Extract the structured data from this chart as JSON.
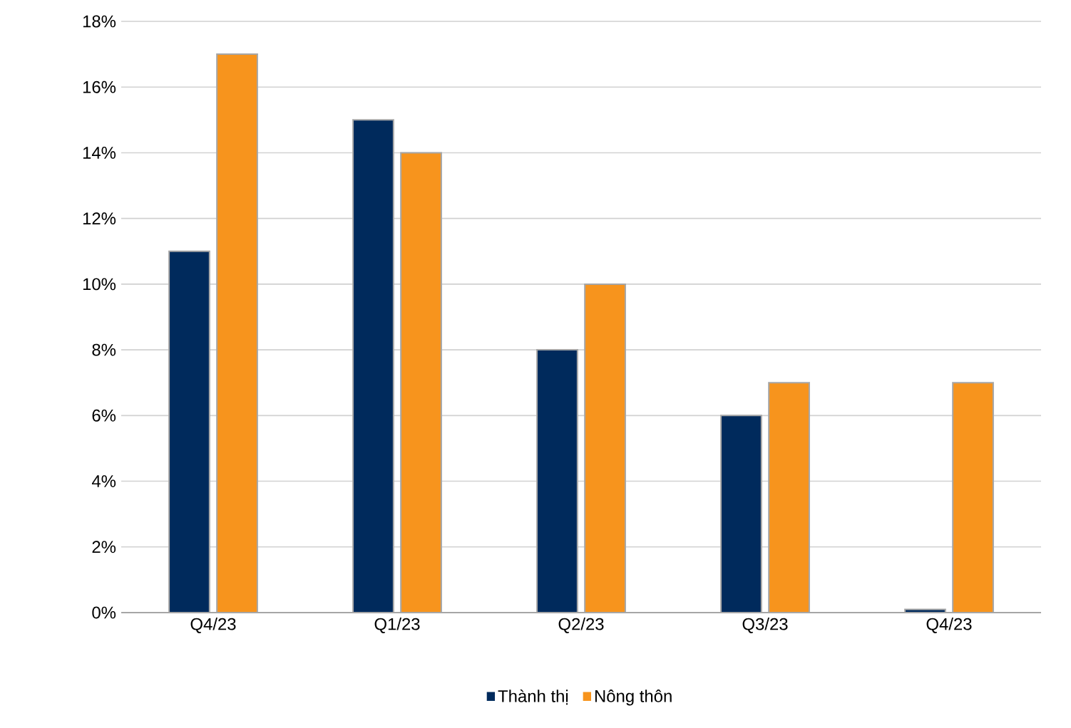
{
  "chart_data": {
    "type": "bar",
    "categories": [
      "Q4/23",
      "Q1/23",
      "Q2/23",
      "Q3/23",
      "Q4/23"
    ],
    "series": [
      {
        "name": "Thành thị",
        "color": "#002a5c",
        "values": [
          11,
          15,
          8,
          6,
          0.1
        ]
      },
      {
        "name": "Nông thôn",
        "color": "#f7941d",
        "values": [
          17,
          14,
          10,
          7,
          7
        ]
      }
    ],
    "ylim": [
      0,
      18
    ],
    "yticks": [
      {
        "value": 0,
        "label": "0%"
      },
      {
        "value": 2,
        "label": "2%"
      },
      {
        "value": 4,
        "label": "4%"
      },
      {
        "value": 6,
        "label": "6%"
      },
      {
        "value": 8,
        "label": "8%"
      },
      {
        "value": 10,
        "label": "10%"
      },
      {
        "value": 12,
        "label": "12%"
      },
      {
        "value": 14,
        "label": "14%"
      },
      {
        "value": 16,
        "label": "16%"
      },
      {
        "value": 18,
        "label": "18%"
      }
    ],
    "grid": "y",
    "legend": "bottom"
  }
}
